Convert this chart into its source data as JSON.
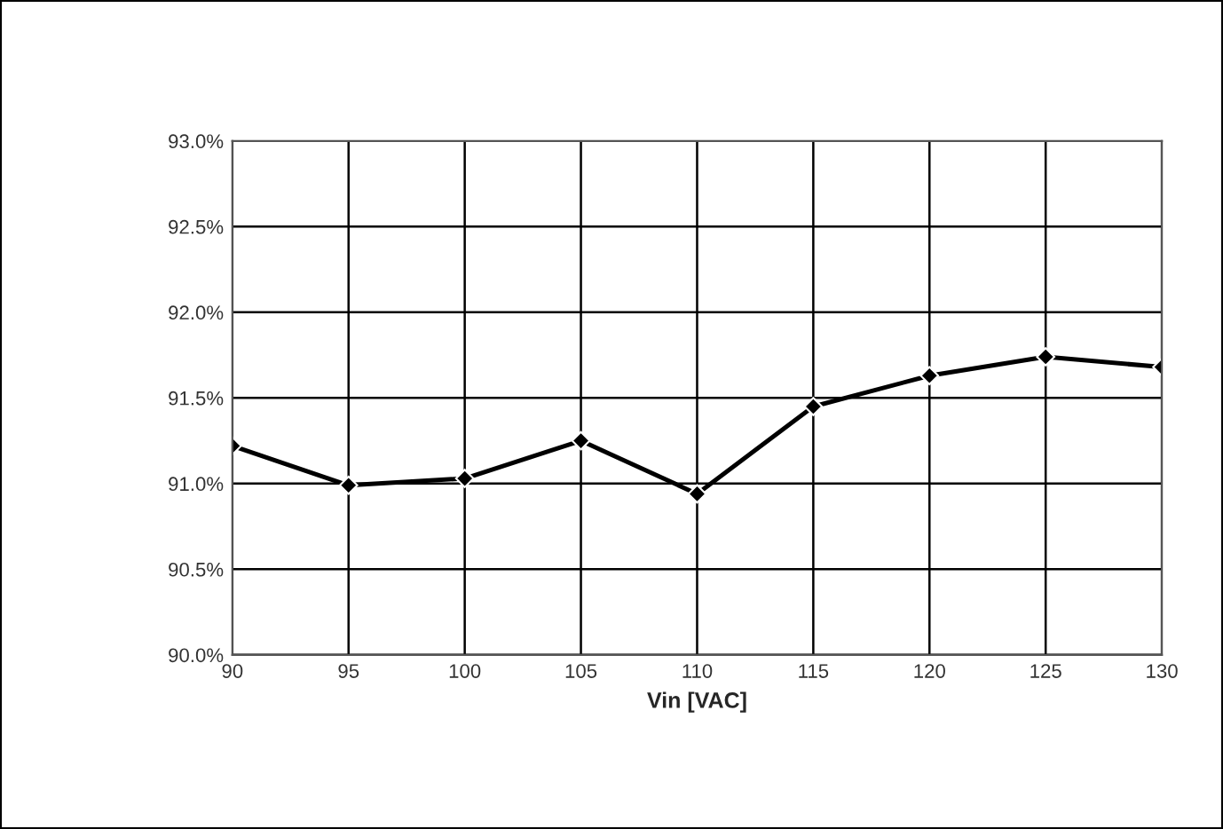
{
  "chart_data": {
    "type": "line",
    "xlabel": "Vin [VAC]",
    "x": [
      90,
      95,
      100,
      105,
      110,
      115,
      120,
      125,
      130
    ],
    "series": [
      {
        "color": "#000000",
        "values": [
          91.22,
          90.99,
          91.03,
          91.25,
          90.94,
          91.45,
          91.63,
          91.74,
          91.68
        ]
      }
    ],
    "xlim": [
      90,
      130
    ],
    "xticks": [
      90,
      95,
      100,
      105,
      110,
      115,
      120,
      125,
      130
    ],
    "ylim": [
      90.0,
      93.0
    ],
    "yticks": [
      {
        "value": 90.0,
        "label": "90.0%"
      },
      {
        "value": 90.5,
        "label": "90.5%"
      },
      {
        "value": 91.0,
        "label": "91.0%"
      },
      {
        "value": 91.5,
        "label": "91.5%"
      },
      {
        "value": 92.0,
        "label": "92.0%"
      },
      {
        "value": 92.5,
        "label": "92.5%"
      },
      {
        "value": 93.0,
        "label": "93.0%"
      }
    ],
    "grid": true,
    "marker": "diamond",
    "line_style": "solid",
    "legend": false
  }
}
